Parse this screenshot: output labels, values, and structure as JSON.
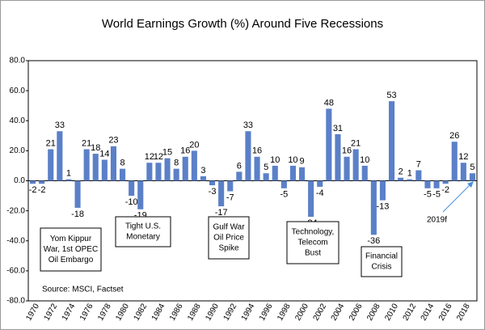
{
  "chart_data": {
    "type": "bar",
    "title": "World Earnings Growth (%) Around Five Recessions",
    "categories": [
      "1970",
      null,
      "1972",
      null,
      "1974",
      null,
      "1976",
      null,
      "1978",
      null,
      "1980",
      null,
      "1982",
      null,
      "1984",
      null,
      "1986",
      null,
      "1988",
      null,
      "1990",
      null,
      "1992",
      null,
      "1994",
      null,
      "1996",
      null,
      "1998",
      null,
      "2000",
      null,
      "2002",
      null,
      "2004",
      null,
      "2006",
      null,
      "2008",
      null,
      "2010",
      null,
      "2012",
      null,
      "2014",
      null,
      "2016",
      null,
      "2018",
      null
    ],
    "values": [
      -2,
      -2,
      21,
      33,
      1,
      -18,
      21,
      18,
      14,
      23,
      8,
      -10,
      -19,
      12,
      12,
      15,
      8,
      16,
      20,
      3,
      -3,
      -17,
      -7,
      6,
      33,
      16,
      5,
      10,
      -5,
      10,
      9,
      -24,
      -4,
      48,
      31,
      16,
      21,
      10,
      -36,
      -13,
      53,
      2,
      1,
      7,
      -5,
      -5,
      -2,
      26,
      12,
      5
    ],
    "color": "#5b80c8",
    "ylim": [
      -80,
      80
    ],
    "yticks": [
      {
        "value": -80,
        "label": "-80.0"
      },
      {
        "value": -60,
        "label": "-60.0"
      },
      {
        "value": -40,
        "label": "-40.0"
      },
      {
        "value": -20,
        "label": "-20.0"
      },
      {
        "value": 0,
        "label": "0.0"
      },
      {
        "value": 20,
        "label": "20.0"
      },
      {
        "value": 40,
        "label": "40.0"
      },
      {
        "value": 60,
        "label": "60.0"
      },
      {
        "value": 80,
        "label": "80.0"
      }
    ],
    "grid": false,
    "annotations": [
      [
        "Yom Kippur",
        "War, 1st OPEC",
        "Oil Embargo"
      ],
      [
        "Tight U.S.",
        "Monetary"
      ],
      [
        "Gulf War",
        "Oil Price",
        "Spike"
      ],
      [
        "Technology,",
        "Telecom",
        "Bust"
      ],
      [
        "Financial",
        "Crisis"
      ]
    ],
    "source": "Source: MSCI, Factset",
    "forecast_note": "2019f"
  }
}
